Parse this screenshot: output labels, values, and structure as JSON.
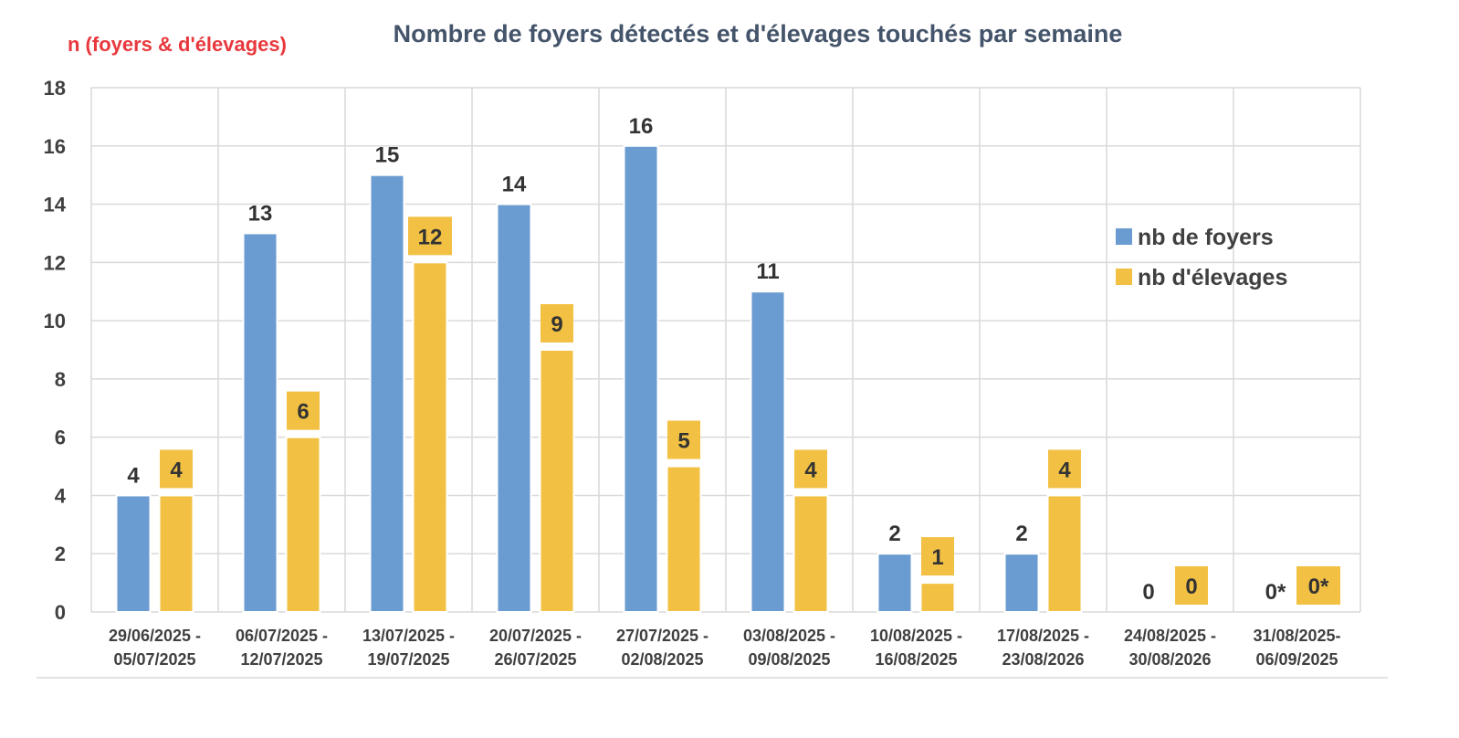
{
  "chart_data": {
    "type": "bar",
    "title": "Nombre de foyers détectés et d'élevages touchés par semaine",
    "ylabel": "n (foyers & d'élevages)",
    "xlabel": "",
    "ylim": [
      0,
      18
    ],
    "yticks": [
      "0",
      "2",
      "4",
      "6",
      "8",
      "10",
      "12",
      "14",
      "16",
      "18"
    ],
    "grid": true,
    "legend_position": "right",
    "categories": [
      [
        "29/06/2025 -",
        "05/07/2025"
      ],
      [
        "06/07/2025 -",
        "12/07/2025"
      ],
      [
        "13/07/2025 -",
        "19/07/2025"
      ],
      [
        "20/07/2025 -",
        "26/07/2025"
      ],
      [
        "27/07/2025 -",
        "02/08/2025"
      ],
      [
        "03/08/2025 -",
        "09/08/2025"
      ],
      [
        "10/08/2025 -",
        "16/08/2025"
      ],
      [
        "17/08/2025 -",
        "23/08/2026"
      ],
      [
        "24/08/2025 -",
        "30/08/2026"
      ],
      [
        "31/08/2025-",
        "06/09/2025"
      ]
    ],
    "series": [
      {
        "name": "nb de foyers",
        "color": "#6a9bd1",
        "values": [
          4,
          13,
          15,
          14,
          16,
          11,
          2,
          2,
          0,
          0
        ],
        "labels": [
          "4",
          "13",
          "15",
          "14",
          "16",
          "11",
          "2",
          "2",
          "0",
          "0*"
        ]
      },
      {
        "name": "nb  d'élevages",
        "color": "#f2c144",
        "values": [
          4,
          6,
          12,
          9,
          5,
          4,
          1,
          4,
          0,
          0
        ],
        "labels": [
          "4",
          "6",
          "12",
          "9",
          "5",
          "4",
          "1",
          "4",
          "0",
          "0*"
        ]
      }
    ]
  }
}
